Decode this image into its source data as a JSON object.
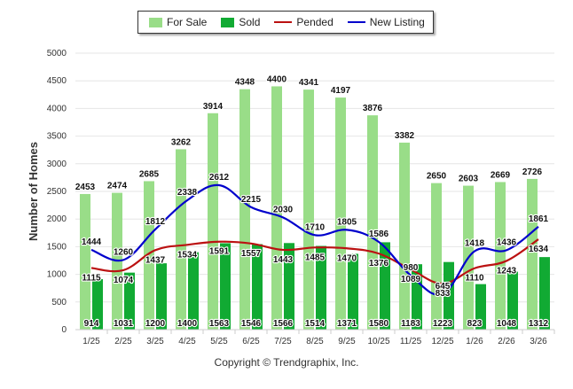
{
  "chart_data": {
    "type": "bar",
    "categories": [
      "1/25",
      "2/25",
      "3/25",
      "4/25",
      "5/25",
      "6/25",
      "7/25",
      "8/25",
      "9/25",
      "10/25",
      "11/25",
      "12/25",
      "1/26",
      "2/26",
      "3/26"
    ],
    "ylabel": "Number of Homes",
    "ylim": [
      0,
      5000
    ],
    "yticks": [
      0,
      500,
      1000,
      1500,
      2000,
      2500,
      3000,
      3500,
      4000,
      4500,
      5000
    ],
    "grid": true,
    "legend_position": "top-center",
    "series": [
      {
        "name": "For Sale",
        "kind": "bar",
        "color": "#99dd88",
        "values": [
          2453,
          2474,
          2685,
          3262,
          3914,
          4348,
          4400,
          4341,
          4197,
          3876,
          3382,
          2650,
          2603,
          2669,
          2726
        ]
      },
      {
        "name": "Sold",
        "kind": "bar",
        "color": "#11aa33",
        "values": [
          914,
          1031,
          1200,
          1400,
          1563,
          1546,
          1566,
          1514,
          1371,
          1580,
          1183,
          1223,
          823,
          1048,
          1312
        ]
      },
      {
        "name": "Pended",
        "kind": "line",
        "color": "#bb1111",
        "values": [
          1115,
          1074,
          1437,
          1534,
          1591,
          1557,
          1443,
          1485,
          1470,
          1376,
          1089,
          833,
          1110,
          1243,
          1634
        ]
      },
      {
        "name": "New Listing",
        "kind": "line",
        "color": "#0000cc",
        "values": [
          1444,
          1260,
          1812,
          2338,
          2612,
          2215,
          2030,
          1710,
          1805,
          1586,
          980,
          645,
          1418,
          1436,
          1861
        ]
      }
    ]
  },
  "footer": {
    "copyright": "Copyright © Trendgraphix, Inc."
  }
}
